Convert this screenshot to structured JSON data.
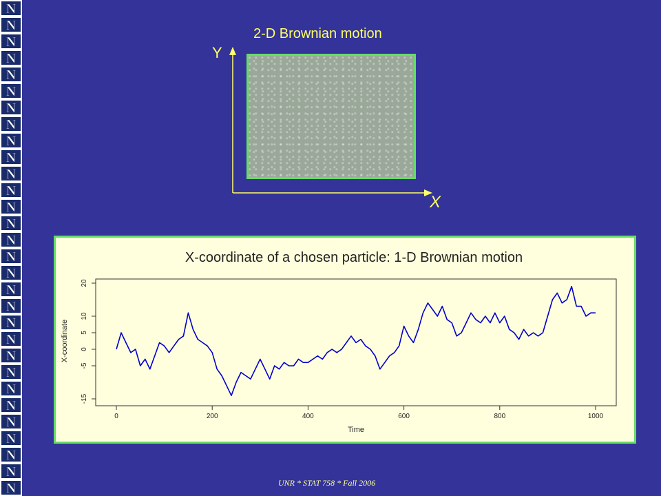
{
  "slide": {
    "title_2d": "2-D Brownian motion",
    "axis_y": "Y",
    "axis_x": "X",
    "footer": "UNR * STAT 758 * Fall 2006",
    "left_logo_letter": "N",
    "colors": {
      "background": "#333399",
      "accent_text": "#ffff66",
      "frame_green": "#66dd66",
      "plot_panel_bg": "#ffffdd",
      "series": "#0000cc"
    }
  },
  "chart_data": {
    "type": "line",
    "title": "X-coordinate of a chosen particle: 1-D Brownian motion",
    "xlabel": "Time",
    "ylabel": "X-coordinate",
    "xlim": [
      0,
      1000
    ],
    "ylim": [
      -15,
      20
    ],
    "xticks": [
      0,
      200,
      400,
      600,
      800,
      1000
    ],
    "yticks": [
      -15,
      -5,
      0,
      5,
      10,
      20
    ],
    "grid": false,
    "series": [
      {
        "x": [
          0,
          10,
          20,
          30,
          40,
          50,
          60,
          70,
          80,
          90,
          100,
          110,
          120,
          130,
          140,
          150,
          160,
          170,
          180,
          190,
          200,
          210,
          220,
          230,
          240,
          250,
          260,
          270,
          280,
          290,
          300,
          310,
          320,
          330,
          340,
          350,
          360,
          370,
          380,
          390,
          400,
          410,
          420,
          430,
          440,
          450,
          460,
          470,
          480,
          490,
          500,
          510,
          520,
          530,
          540,
          550,
          560,
          570,
          580,
          590,
          600,
          610,
          620,
          630,
          640,
          650,
          660,
          670,
          680,
          690,
          700,
          710,
          720,
          730,
          740,
          750,
          760,
          770,
          780,
          790,
          800,
          810,
          820,
          830,
          840,
          850,
          860,
          870,
          880,
          890,
          900,
          910,
          920,
          930,
          940,
          950,
          960,
          970,
          980,
          990,
          1000
        ],
        "y": [
          0,
          5,
          2,
          -1,
          0,
          -5,
          -3,
          -6,
          -2,
          2,
          1,
          -1,
          1,
          3,
          4,
          11,
          6,
          3,
          2,
          1,
          -1,
          -6,
          -8,
          -11,
          -14,
          -10,
          -7,
          -8,
          -9,
          -6,
          -3,
          -6,
          -9,
          -5,
          -6,
          -4,
          -5,
          -5,
          -3,
          -4,
          -4,
          -3,
          -2,
          -3,
          -1,
          0,
          -1,
          0,
          2,
          4,
          2,
          3,
          1,
          0,
          -2,
          -6,
          -4,
          -2,
          -1,
          1,
          7,
          4,
          2,
          6,
          11,
          14,
          12,
          10,
          13,
          9,
          8,
          4,
          5,
          8,
          11,
          9,
          8,
          10,
          8,
          11,
          8,
          10,
          6,
          5,
          3,
          6,
          4,
          5,
          4,
          5,
          10,
          15,
          17,
          14,
          15,
          19,
          13,
          13,
          10,
          11,
          11
        ]
      }
    ]
  }
}
